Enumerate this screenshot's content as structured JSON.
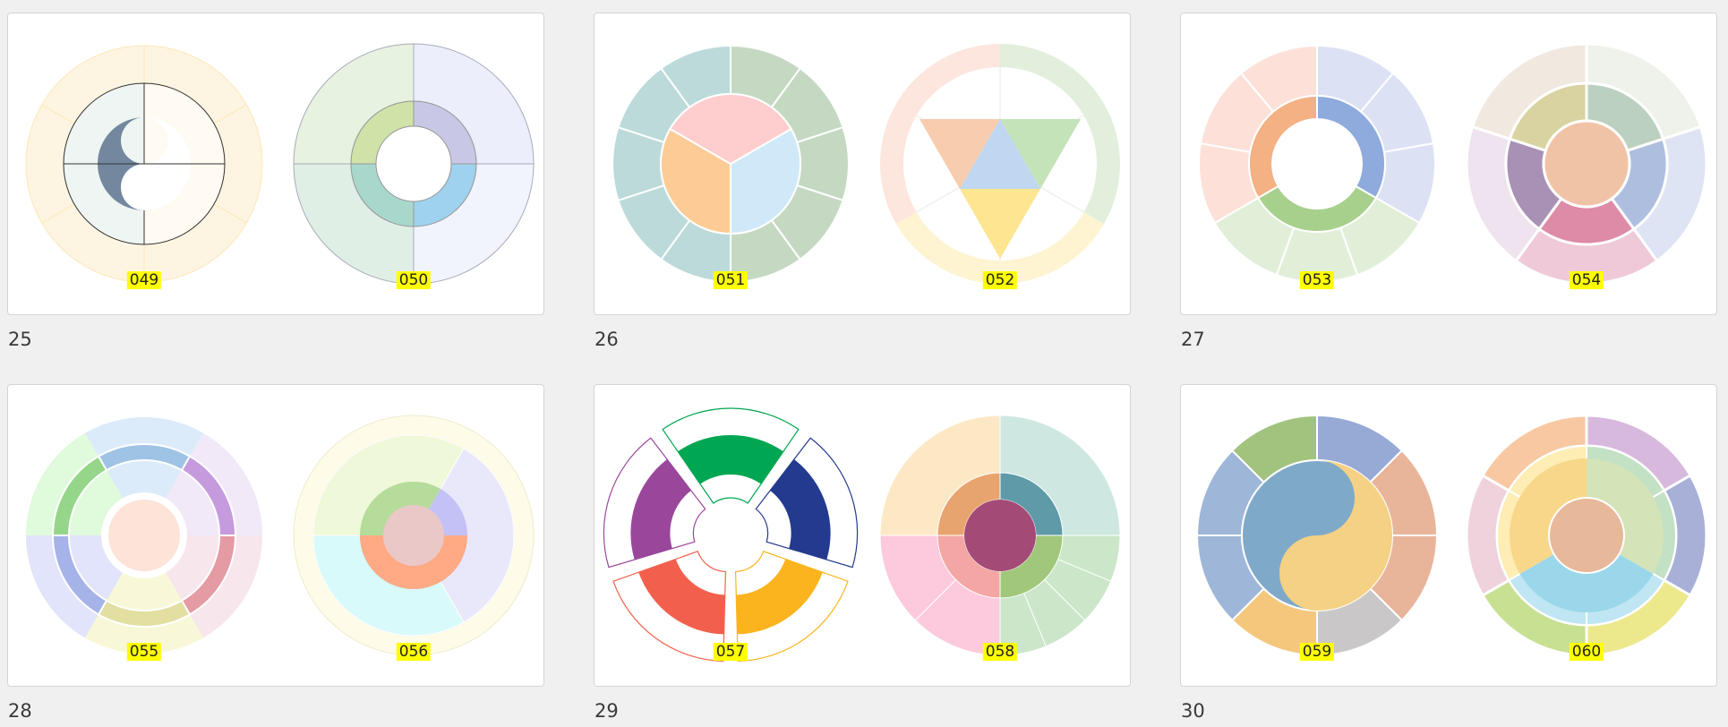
{
  "cards": [
    {
      "caption": "25",
      "charts": [
        {
          "id": "049"
        },
        {
          "id": "050"
        }
      ]
    },
    {
      "caption": "26",
      "charts": [
        {
          "id": "051"
        },
        {
          "id": "052"
        }
      ]
    },
    {
      "caption": "27",
      "charts": [
        {
          "id": "053"
        },
        {
          "id": "054"
        }
      ]
    },
    {
      "caption": "28",
      "charts": [
        {
          "id": "055"
        },
        {
          "id": "056"
        }
      ]
    },
    {
      "caption": "29",
      "charts": [
        {
          "id": "057"
        },
        {
          "id": "058"
        }
      ]
    },
    {
      "caption": "30",
      "charts": [
        {
          "id": "059"
        },
        {
          "id": "060"
        }
      ]
    }
  ],
  "colors": {
    "page_background": "#f0f0f0",
    "card_background": "#ffffff",
    "label_highlight": "#ffff00"
  }
}
